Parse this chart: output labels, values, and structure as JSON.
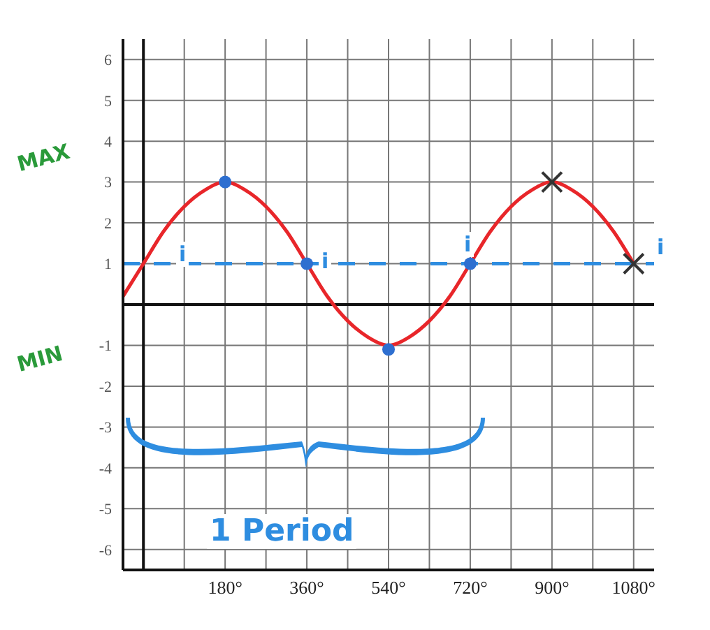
{
  "chart_data": {
    "type": "line",
    "x": [
      -45,
      0,
      45,
      90,
      135,
      180,
      225,
      270,
      315,
      360,
      405,
      450,
      495,
      540,
      585,
      630,
      675,
      720,
      765,
      810,
      855,
      900,
      945,
      990,
      1035,
      1080
    ],
    "series": [
      {
        "type": "line",
        "color": "#e8262a",
        "values": [
          0.2,
          1,
          1.8,
          2.4,
          2.8,
          3,
          2.8,
          2.4,
          1.8,
          1,
          0.2,
          -0.4,
          -0.8,
          -1,
          -0.8,
          -0.4,
          0.2,
          1,
          1.8,
          2.4,
          2.8,
          3,
          2.8,
          2.4,
          1.8,
          1
        ],
        "marker": "none"
      },
      {
        "type": "scatter",
        "color": "#2e6fd0",
        "x": [
          180,
          360,
          540,
          720
        ],
        "values": [
          3,
          1,
          -1.1,
          1
        ],
        "marker": "circle"
      },
      {
        "type": "scatter",
        "color": "#333333",
        "x": [
          900,
          1080
        ],
        "values": [
          3,
          1
        ],
        "marker": "cross"
      }
    ],
    "xlim": [
      -45,
      1125
    ],
    "xticks": [
      {
        "value": 180,
        "label": "180°"
      },
      {
        "value": 360,
        "label": "360°"
      },
      {
        "value": 540,
        "label": "540°"
      },
      {
        "value": 720,
        "label": "720°"
      },
      {
        "value": 900,
        "label": "900°"
      },
      {
        "value": 1080,
        "label": "1080°"
      }
    ],
    "ylim": [
      -6.5,
      6.5
    ],
    "yticks": [
      -6,
      -5,
      -4,
      -3,
      -2,
      -1,
      1,
      2,
      3,
      4,
      5,
      6
    ],
    "grid": true,
    "ref_lines": [
      {
        "axis": "y",
        "value": 1,
        "color": "#2e8de0",
        "line_style": "dashed"
      }
    ],
    "annotations": [
      "MAX",
      "MIN",
      "i",
      "i",
      "i",
      "i",
      "1 Period"
    ]
  }
}
